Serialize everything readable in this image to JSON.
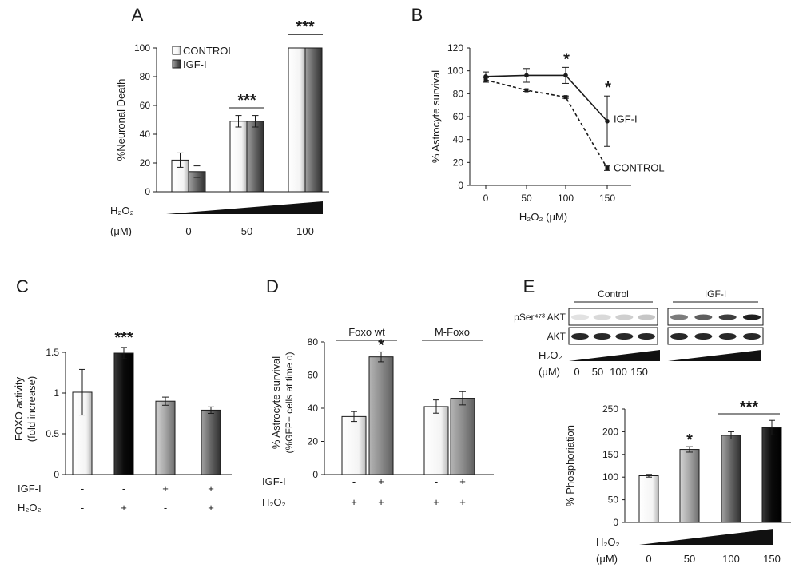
{
  "chart_data": [
    {
      "panel": "A",
      "type": "bar",
      "ylabel": "%Neuronal Death",
      "ylim": [
        0,
        100
      ],
      "yticks": [
        0,
        20,
        40,
        60,
        80,
        100
      ],
      "categories": [
        "0",
        "50",
        "100"
      ],
      "series": [
        {
          "name": "CONTROL",
          "values": [
            22,
            49,
            100
          ],
          "errors": [
            5,
            4,
            0
          ],
          "fill": "white"
        },
        {
          "name": "IGF-I",
          "values": [
            14,
            49,
            100
          ],
          "errors": [
            4,
            4,
            0
          ],
          "fill": "dark"
        }
      ],
      "legend": [
        "CONTROL",
        "IGF-I"
      ],
      "significance": [
        {
          "index": 1,
          "label": "***"
        },
        {
          "index": 2,
          "label": "***"
        }
      ],
      "treatment": {
        "label": "H₂O₂",
        "unit": "(μM)"
      }
    },
    {
      "panel": "B",
      "type": "line",
      "ylabel": "% Astrocyte survival",
      "xlabel": "H₂O₂ (μM)",
      "ylim": [
        0,
        120
      ],
      "yticks": [
        0,
        20,
        40,
        60,
        80,
        100,
        120
      ],
      "x": [
        0,
        50,
        100,
        150
      ],
      "series": [
        {
          "name": "IGF-I",
          "values": [
            95,
            96,
            96,
            56
          ],
          "errors": [
            4,
            6,
            7,
            22
          ],
          "style": "solid"
        },
        {
          "name": "CONTROL",
          "values": [
            92,
            83,
            77,
            15
          ],
          "errors": [
            2,
            1,
            1,
            2
          ],
          "style": "dashed"
        }
      ],
      "significance": [
        {
          "x": 100,
          "label": "*"
        },
        {
          "x": 150,
          "label": "*"
        }
      ]
    },
    {
      "panel": "C",
      "type": "bar",
      "ylabel": "FOXO activity",
      "ylabel2": "(fold increase)",
      "ylim": [
        0,
        1.5
      ],
      "yticks": [
        "0",
        "0.5",
        "1",
        "1.5"
      ],
      "ytick_values": [
        0,
        0.5,
        1,
        1.5
      ],
      "values": [
        1.01,
        1.49,
        0.9,
        0.79
      ],
      "errors": [
        0.28,
        0.07,
        0.05,
        0.04
      ],
      "fills": [
        "white",
        "black",
        "light",
        "dark"
      ],
      "significance": [
        {
          "index": 1,
          "label": "***"
        }
      ],
      "rows": [
        {
          "label": "IGF-I",
          "signs": [
            "-",
            "-",
            "+",
            "+"
          ]
        },
        {
          "label": "H₂O₂",
          "signs": [
            "-",
            "+",
            "-",
            "+"
          ]
        }
      ]
    },
    {
      "panel": "D",
      "type": "bar",
      "ylabel": "% Astrocyte survival",
      "ylabel2": "(%GFP+ cells at time o)",
      "ylim": [
        0,
        80
      ],
      "yticks": [
        0,
        20,
        40,
        60,
        80
      ],
      "groups": [
        "Foxo wt",
        "M-Foxo"
      ],
      "values": [
        35,
        71,
        41,
        46
      ],
      "errors": [
        3,
        3,
        4,
        4
      ],
      "fills": [
        "white",
        "medium",
        "white",
        "medium"
      ],
      "significance": [
        {
          "index": 1,
          "label": "*"
        }
      ],
      "rows": [
        {
          "label": "IGF-I",
          "signs": [
            "-",
            "+",
            "-",
            "+"
          ]
        },
        {
          "label": "H₂O₂",
          "signs": [
            "+",
            "+",
            "+",
            "+"
          ]
        }
      ]
    },
    {
      "panel": "E",
      "type": "bar",
      "ylabel": "% Phosphoriation",
      "ylim": [
        0,
        250
      ],
      "yticks": [
        0,
        50,
        100,
        150,
        200,
        250
      ],
      "categories": [
        "0",
        "50",
        "100",
        "150"
      ],
      "values": [
        103,
        161,
        192,
        209
      ],
      "errors": [
        3,
        6,
        8,
        16
      ],
      "fills": [
        "white",
        "light",
        "dark",
        "black"
      ],
      "significance": [
        {
          "index": 1,
          "label": "*"
        },
        {
          "span": [
            2,
            3
          ],
          "label": "***"
        }
      ],
      "treatment": {
        "label": "H₂O₂",
        "unit": "(μM)"
      },
      "blot": {
        "groups": [
          "Control",
          "IGF-I"
        ],
        "rows": [
          "pSer⁴⁷³ AKT",
          "AKT"
        ],
        "h2o2_label": "H₂O₂",
        "unit_label": "(μM)",
        "doses": [
          "0",
          "50",
          "100",
          "150"
        ]
      }
    }
  ]
}
